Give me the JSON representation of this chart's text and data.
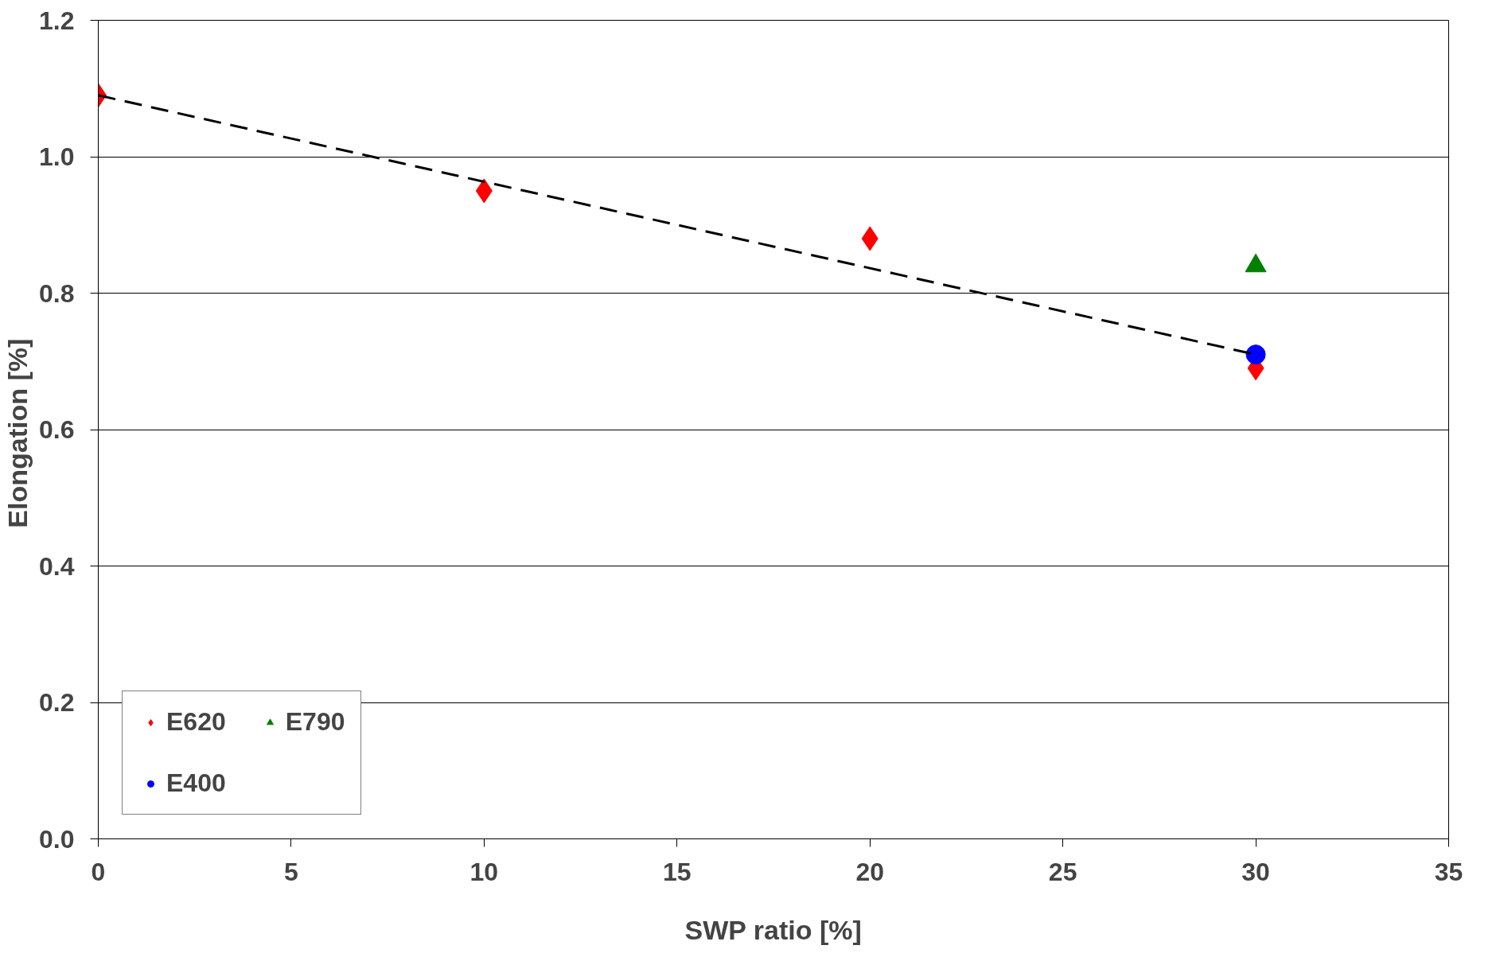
{
  "chart_data": {
    "type": "scatter",
    "xlabel": "SWP ratio [%]",
    "ylabel": "Elongation  [%]",
    "xlim": [
      0,
      35
    ],
    "xticks": [
      0,
      5,
      10,
      15,
      20,
      25,
      30,
      35
    ],
    "ylim": [
      0,
      1.2
    ],
    "yticks": [
      {
        "value": 0,
        "label": "0.0"
      },
      {
        "value": 0.2,
        "label": "0.2"
      },
      {
        "value": 0.4,
        "label": "0.4"
      },
      {
        "value": 0.6,
        "label": "0.6"
      },
      {
        "value": 0.8,
        "label": "0.8"
      },
      {
        "value": 1.0,
        "label": "1.0"
      },
      {
        "value": 1.2,
        "label": "1.2"
      }
    ],
    "grid": "y",
    "legend": "bottom left",
    "series": [
      {
        "type": "line",
        "color": "#000000",
        "line_style": "dashed",
        "marker": "none",
        "x": [
          0,
          30
        ],
        "values": [
          1.09,
          0.71
        ]
      },
      {
        "name": "E620",
        "color": "#ff0000",
        "marker": "diamond",
        "x": [
          0,
          10,
          20,
          30
        ],
        "values": [
          1.09,
          0.95,
          0.88,
          0.69
        ]
      },
      {
        "name": "E400",
        "color": "#0000ff",
        "marker": "circle",
        "x": [
          30
        ],
        "values": [
          0.71
        ]
      },
      {
        "name": "E790",
        "color": "#008000",
        "marker": "triangle",
        "x": [
          30
        ],
        "values": [
          0.84
        ]
      }
    ]
  }
}
